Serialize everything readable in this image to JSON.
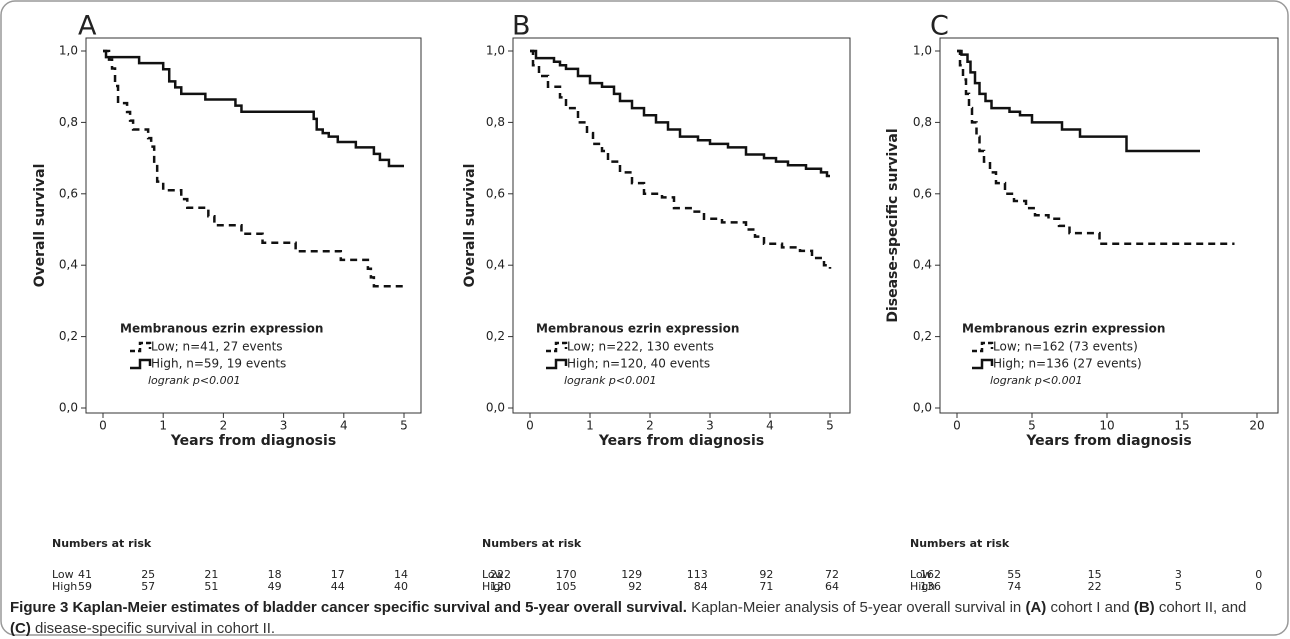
{
  "chart_data": [
    {
      "type": "line",
      "title": "A",
      "xlabel": "Years from diagnosis",
      "ylabel": "Overall survival",
      "xlim": [
        0,
        5
      ],
      "xticks": [
        0,
        1,
        2,
        3,
        4,
        5
      ],
      "ylim": [
        0,
        1
      ],
      "yticks": [
        {
          "value": 0,
          "label": "0,0"
        },
        {
          "value": 0.2,
          "label": "0,2"
        },
        {
          "value": 0.4,
          "label": "0,4"
        },
        {
          "value": 0.6,
          "label": "0,6"
        },
        {
          "value": 0.8,
          "label": "0,8"
        },
        {
          "value": 1,
          "label": "1,0"
        }
      ],
      "legend_title": "Membranous ezrin expression",
      "annotation": "logrank p<0.001",
      "series": [
        {
          "name": "Low; n=41, 27 events",
          "color": "#111111",
          "style": "dashed",
          "x": [
            0,
            0.1,
            0.15,
            0.2,
            0.25,
            0.4,
            0.45,
            0.5,
            0.75,
            0.8,
            0.85,
            0.9,
            1.0,
            1.3,
            1.4,
            1.75,
            1.85,
            2.3,
            2.65,
            3.2,
            3.95,
            4.4,
            4.45,
            4.5,
            5.0
          ],
          "values": [
            1.0,
            0.976,
            0.951,
            0.902,
            0.854,
            0.829,
            0.805,
            0.78,
            0.756,
            0.732,
            0.683,
            0.634,
            0.61,
            0.585,
            0.561,
            0.537,
            0.512,
            0.488,
            0.463,
            0.439,
            0.415,
            0.39,
            0.366,
            0.341,
            0.341
          ]
        },
        {
          "name": "High, n=59, 19 events",
          "color": "#111111",
          "style": "solid",
          "x": [
            0,
            0.05,
            0.6,
            1.0,
            1.1,
            1.2,
            1.3,
            1.7,
            2.2,
            2.3,
            3.5,
            3.55,
            3.65,
            3.75,
            3.9,
            4.2,
            4.5,
            4.6,
            4.75,
            5.0
          ],
          "values": [
            1.0,
            0.983,
            0.966,
            0.949,
            0.915,
            0.898,
            0.88,
            0.864,
            0.847,
            0.83,
            0.81,
            0.78,
            0.77,
            0.76,
            0.745,
            0.73,
            0.712,
            0.695,
            0.678,
            0.678
          ]
        }
      ],
      "risk_table": {
        "title": "Numbers at risk",
        "rows": [
          {
            "name": "Low",
            "values": [
              41,
              25,
              21,
              18,
              17,
              14
            ]
          },
          {
            "name": "High",
            "values": [
              59,
              57,
              51,
              49,
              44,
              40
            ]
          }
        ]
      }
    },
    {
      "type": "line",
      "title": "B",
      "xlabel": "Years from diagnosis",
      "ylabel": "Overall survival",
      "xlim": [
        0,
        5
      ],
      "xticks": [
        0,
        1,
        2,
        3,
        4,
        5
      ],
      "ylim": [
        0,
        1
      ],
      "yticks": [
        {
          "value": 0,
          "label": "0,0"
        },
        {
          "value": 0.2,
          "label": "0,2"
        },
        {
          "value": 0.4,
          "label": "0,4"
        },
        {
          "value": 0.6,
          "label": "0,6"
        },
        {
          "value": 0.8,
          "label": "0,8"
        },
        {
          "value": 1,
          "label": "1,0"
        }
      ],
      "legend_title": "Membranous ezrin expression",
      "annotation": "logrank p<0.001",
      "series": [
        {
          "name": "Low; n=222, 130 events",
          "color": "#111111",
          "style": "dashed",
          "x": [
            0,
            0.05,
            0.15,
            0.3,
            0.5,
            0.6,
            0.8,
            0.95,
            1.05,
            1.2,
            1.3,
            1.5,
            1.7,
            1.9,
            2.2,
            2.4,
            2.7,
            2.9,
            3.2,
            3.6,
            3.75,
            3.9,
            4.2,
            4.5,
            4.7,
            4.9,
            5.0
          ],
          "values": [
            1.0,
            0.96,
            0.93,
            0.9,
            0.87,
            0.84,
            0.8,
            0.77,
            0.74,
            0.72,
            0.69,
            0.66,
            0.63,
            0.6,
            0.59,
            0.56,
            0.55,
            0.53,
            0.52,
            0.5,
            0.48,
            0.46,
            0.45,
            0.44,
            0.42,
            0.4,
            0.39
          ]
        },
        {
          "name": "High; n=120, 40 events",
          "color": "#111111",
          "style": "solid",
          "x": [
            0,
            0.1,
            0.4,
            0.5,
            0.6,
            0.8,
            1.0,
            1.2,
            1.4,
            1.5,
            1.7,
            1.9,
            2.1,
            2.3,
            2.5,
            2.8,
            3.0,
            3.3,
            3.6,
            3.9,
            4.1,
            4.3,
            4.6,
            4.85,
            4.95,
            5.0
          ],
          "values": [
            1.0,
            0.98,
            0.97,
            0.96,
            0.95,
            0.93,
            0.91,
            0.9,
            0.88,
            0.86,
            0.84,
            0.82,
            0.8,
            0.78,
            0.76,
            0.75,
            0.74,
            0.73,
            0.71,
            0.7,
            0.69,
            0.68,
            0.67,
            0.66,
            0.65,
            0.65
          ]
        }
      ],
      "risk_table": {
        "title": "Numbers at risk",
        "rows": [
          {
            "name": "Low",
            "values": [
              222,
              170,
              129,
              113,
              92,
              72
            ]
          },
          {
            "name": "High",
            "values": [
              120,
              105,
              92,
              84,
              71,
              64
            ]
          }
        ]
      }
    },
    {
      "type": "line",
      "title": "C",
      "xlabel": "Years from diagnosis",
      "ylabel": "Disease-specific survival",
      "xlim": [
        0,
        20
      ],
      "xticks": [
        0,
        5,
        10,
        15,
        20
      ],
      "ylim": [
        0,
        1
      ],
      "yticks": [
        {
          "value": 0,
          "label": "0,0"
        },
        {
          "value": 0.2,
          "label": "0,2"
        },
        {
          "value": 0.4,
          "label": "0,4"
        },
        {
          "value": 0.6,
          "label": "0,6"
        },
        {
          "value": 0.8,
          "label": "0,8"
        },
        {
          "value": 1,
          "label": "1,0"
        }
      ],
      "legend_title": "Membranous ezrin expression",
      "annotation": "logrank p<0.001",
      "series": [
        {
          "name": "Low; n=162 (73 events)",
          "color": "#111111",
          "style": "dashed",
          "x": [
            0,
            0.2,
            0.4,
            0.6,
            0.8,
            1.0,
            1.3,
            1.5,
            1.8,
            2.2,
            2.6,
            3.2,
            3.8,
            4.6,
            5.2,
            6.1,
            6.8,
            7.5,
            9.5,
            18.5
          ],
          "values": [
            1.0,
            0.96,
            0.92,
            0.88,
            0.84,
            0.8,
            0.76,
            0.72,
            0.69,
            0.66,
            0.63,
            0.6,
            0.58,
            0.56,
            0.54,
            0.53,
            0.51,
            0.49,
            0.46,
            0.46
          ]
        },
        {
          "name": "High; n=136 (27 events)",
          "color": "#111111",
          "style": "solid",
          "x": [
            0,
            0.3,
            0.7,
            0.9,
            1.2,
            1.5,
            1.9,
            2.3,
            3.5,
            4.2,
            5.0,
            7.0,
            8.2,
            11.3,
            16.2
          ],
          "values": [
            1.0,
            0.99,
            0.97,
            0.94,
            0.91,
            0.88,
            0.86,
            0.84,
            0.83,
            0.82,
            0.8,
            0.78,
            0.76,
            0.72,
            0.72
          ]
        }
      ],
      "risk_table": {
        "title": "Numbers at risk",
        "rows": [
          {
            "name": "Low",
            "values": [
              162,
              55,
              15,
              3,
              0
            ]
          },
          {
            "name": "High",
            "values": [
              136,
              74,
              22,
              5,
              0
            ]
          }
        ]
      }
    }
  ],
  "caption": [
    {
      "text": "Figure 3 Kaplan-Meier estimates of bladder cancer specific survival and 5-year overall survival.",
      "bold": true
    },
    {
      "text": " Kaplan-Meier analysis of 5-year overall survival in ",
      "bold": false
    },
    {
      "text": "(A)",
      "bold": true
    },
    {
      "text": " cohort I and ",
      "bold": false
    },
    {
      "text": "(B)",
      "bold": true
    },
    {
      "text": " cohort II, and ",
      "bold": false
    },
    {
      "text": "(C)",
      "bold": true
    },
    {
      "text": " disease-specific survival in cohort II.",
      "bold": false
    }
  ]
}
